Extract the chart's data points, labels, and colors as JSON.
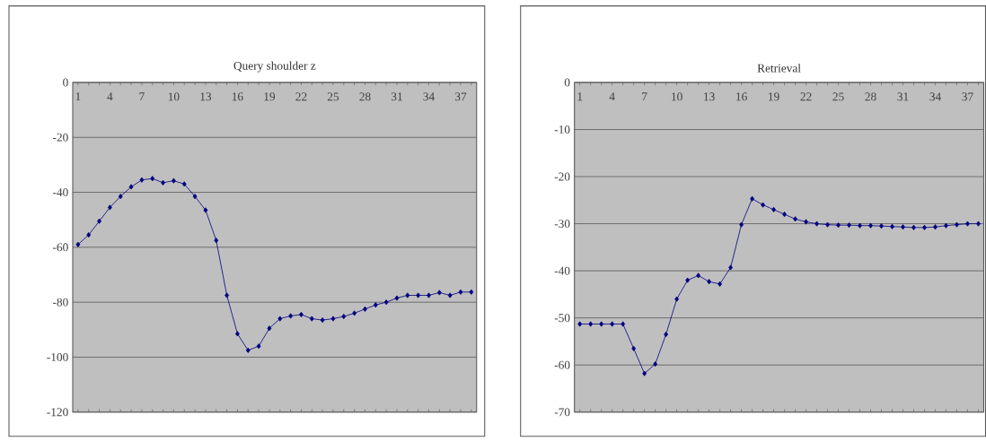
{
  "chart_data": [
    {
      "type": "line",
      "title": "Query shoulder z",
      "categories": [
        "1",
        null,
        null,
        "4",
        null,
        null,
        "7",
        null,
        null,
        "10",
        null,
        null,
        "13",
        null,
        null,
        "16",
        null,
        null,
        "19",
        null,
        null,
        "22",
        null,
        null,
        "25",
        null,
        null,
        "28",
        null,
        null,
        "31",
        null,
        null,
        "34",
        null,
        null,
        "37",
        null
      ],
      "ylim": [
        -120,
        0
      ],
      "yticks": [
        0,
        -20,
        -40,
        -60,
        -80,
        -100,
        -120
      ],
      "grid": "y",
      "marker": "diamond",
      "color": "#000080",
      "values": [
        -59,
        -55.5,
        -50.5,
        -45.5,
        -41.5,
        -38,
        -35.5,
        -35,
        -36.5,
        -35.8,
        -37,
        -41.5,
        -46.5,
        -57.5,
        -77.5,
        -91.5,
        -97.5,
        -96,
        -89.5,
        -86,
        -85,
        -84.5,
        -86,
        -86.5,
        -86,
        -85.2,
        -84,
        -82.5,
        -81,
        -80,
        -78.5,
        -77.5,
        -77.5,
        -77.5,
        -76.5,
        -77.5,
        -76.3,
        -76.3
      ]
    },
    {
      "type": "line",
      "title": "Retrieval",
      "categories": [
        "1",
        null,
        null,
        "4",
        null,
        null,
        "7",
        null,
        null,
        "10",
        null,
        null,
        "13",
        null,
        null,
        "16",
        null,
        null,
        "19",
        null,
        null,
        "22",
        null,
        null,
        "25",
        null,
        null,
        "28",
        null,
        null,
        "31",
        null,
        null,
        "34",
        null,
        null,
        "37",
        null
      ],
      "ylim": [
        -70,
        0
      ],
      "yticks": [
        0,
        -10,
        -20,
        -30,
        -40,
        -50,
        -60,
        -70
      ],
      "grid": "y",
      "marker": "diamond",
      "color": "#000080",
      "values": [
        -51.3,
        -51.3,
        -51.3,
        -51.3,
        -51.3,
        -56.5,
        -61.8,
        -59.8,
        -53.5,
        -46,
        -42,
        -41,
        -42.3,
        -42.8,
        -39.3,
        -30.2,
        -24.7,
        -26,
        -27,
        -28,
        -29,
        -29.6,
        -30,
        -30.2,
        -30.3,
        -30.3,
        -30.4,
        -30.4,
        -30.5,
        -30.6,
        -30.7,
        -30.8,
        -30.8,
        -30.7,
        -30.4,
        -30.2,
        -30,
        -30
      ]
    }
  ]
}
